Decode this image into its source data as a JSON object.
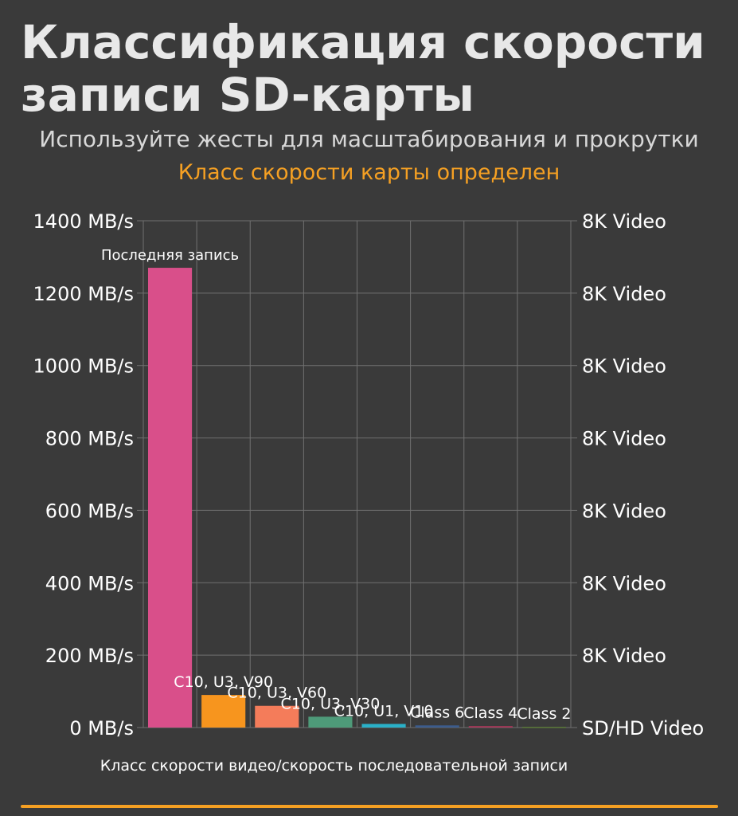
{
  "header": {
    "title": "Классификация скорости записи SD-карты",
    "subtitle": "Используйте жесты для масштабирования и прокрутки",
    "status": "Класс скорости карты определен"
  },
  "colors": {
    "background": "#3a3a3a",
    "accent": "#f5a023",
    "grid": "#707070"
  },
  "chart_data": {
    "type": "bar",
    "categories": [
      "Последняя запись",
      "C10, U3, V90",
      "C10, U3, V60",
      "C10, U3, V30",
      "C10, U1, V10",
      "Class 6",
      "Class 4",
      "Class 2"
    ],
    "values": [
      1270,
      90,
      60,
      30,
      10,
      6,
      4,
      2
    ],
    "colors": [
      "#d94f8a",
      "#f7951e",
      "#f47c5a",
      "#4e9a79",
      "#2ab0c8",
      "#3c5c8c",
      "#a8385a",
      "#5c7a3a"
    ],
    "xlabel": "Класс скорости видео/скорость последовательной записи",
    "ylim": [
      0,
      1400
    ],
    "y_ticks": [
      "0 MB/s",
      "200 MB/s",
      "400 MB/s",
      "600 MB/s",
      "800 MB/s",
      "1000 MB/s",
      "1200 MB/s",
      "1400 MB/s"
    ],
    "y2_ticks": [
      "SD/HD Video",
      "8K Video",
      "8K Video",
      "8K Video",
      "8K Video",
      "8K Video",
      "8K Video",
      "8K Video"
    ],
    "grid": true
  }
}
